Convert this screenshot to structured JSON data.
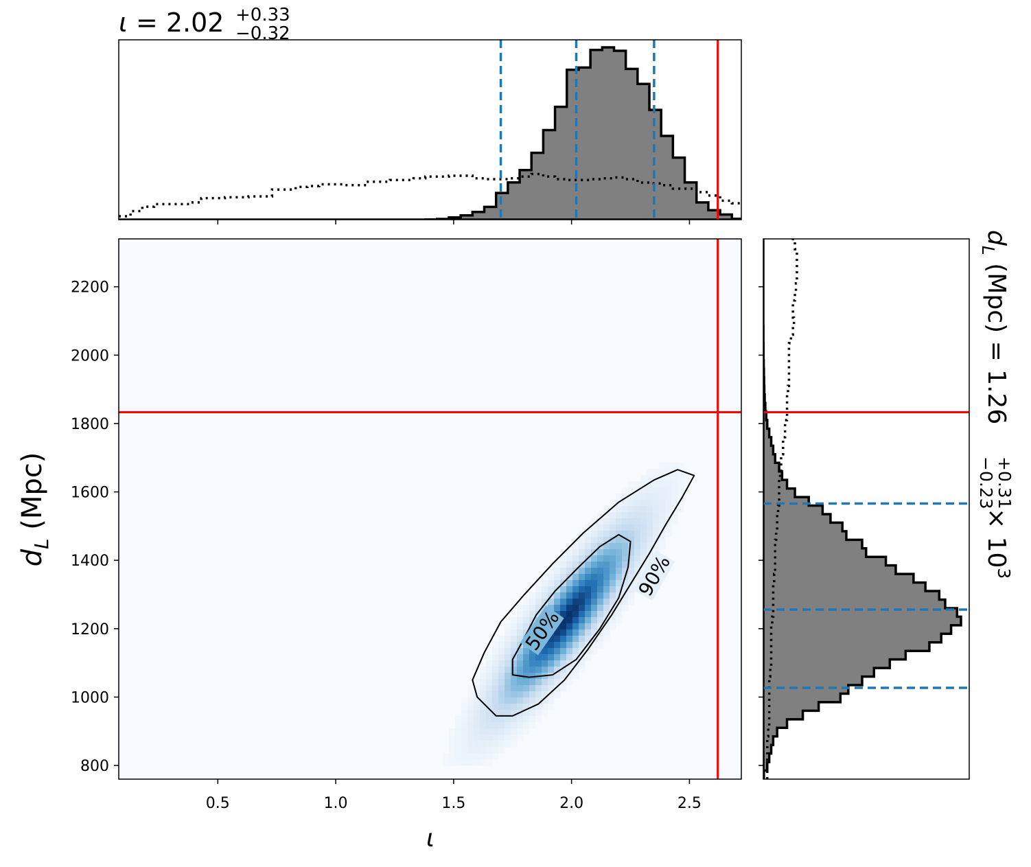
{
  "chart_data": {
    "type": "corner",
    "panels": {
      "top_histogram": {
        "type": "histogram",
        "title": {
          "symbol": "ι",
          "eq": " = 2.02",
          "sup": "+0.33",
          "sub": "−0.32"
        },
        "xlim": [
          0.08,
          2.72
        ],
        "bins_start": 0.08,
        "bin_width": 0.05,
        "posterior_density": [
          0,
          0,
          0,
          0,
          0,
          0,
          0,
          0,
          0,
          0,
          0,
          0,
          0,
          0,
          0,
          0,
          0,
          0,
          0,
          0,
          0,
          0,
          0,
          0,
          0,
          0,
          0.001,
          0.004,
          0.013,
          0.025,
          0.045,
          0.074,
          0.155,
          0.216,
          0.288,
          0.388,
          0.52,
          0.655,
          0.87,
          0.883,
          0.985,
          1.0,
          0.98,
          0.875,
          0.788,
          0.637,
          0.486,
          0.36,
          0.216,
          0.1,
          0.055,
          0.03,
          0.005
        ],
        "prior_density": [
          0.02,
          0.05,
          0.075,
          0.09,
          0.09,
          0.09,
          0.1,
          0.125,
          0.125,
          0.13,
          0.13,
          0.135,
          0.135,
          0.175,
          0.175,
          0.19,
          0.195,
          0.205,
          0.205,
          0.2,
          0.2,
          0.22,
          0.22,
          0.23,
          0.23,
          0.24,
          0.25,
          0.25,
          0.255,
          0.255,
          0.24,
          0.235,
          0.235,
          0.24,
          0.25,
          0.265,
          0.25,
          0.235,
          0.23,
          0.23,
          0.235,
          0.24,
          0.245,
          0.235,
          0.215,
          0.21,
          0.2,
          0.18,
          0.18,
          0.16,
          0.14,
          0.11,
          0.095
        ],
        "quantile_lines": [
          1.7,
          2.02,
          2.35
        ],
        "truth": 2.62
      },
      "joint": {
        "type": "heatmap",
        "xlim": [
          0.08,
          2.72
        ],
        "ylim": [
          760,
          2340
        ],
        "xlabel": "ι",
        "ylabel_main": "d",
        "ylabel_sub": "L",
        "ylabel_rest": " (Mpc)",
        "xticks": [
          0.5,
          1.0,
          1.5,
          2.0,
          2.5
        ],
        "xtick_labels": [
          "0.5",
          "1.0",
          "1.5",
          "2.0",
          "2.5"
        ],
        "yticks": [
          800,
          1000,
          1200,
          1400,
          1600,
          1800,
          2000,
          2200
        ],
        "ytick_labels": [
          "800",
          "1000",
          "1200",
          "1400",
          "1600",
          "1800",
          "2000",
          "2200"
        ],
        "density_center": {
          "x": 1.98,
          "y": 1230
        },
        "contours": [
          {
            "level": "50%",
            "points": [
              [
                1.79,
                1160
              ],
              [
                1.85,
                1240
              ],
              [
                1.93,
                1310
              ],
              [
                2.03,
                1380
              ],
              [
                2.12,
                1440
              ],
              [
                2.2,
                1475
              ],
              [
                2.25,
                1455
              ],
              [
                2.24,
                1380
              ],
              [
                2.2,
                1290
              ],
              [
                2.12,
                1200
              ],
              [
                2.02,
                1110
              ],
              [
                1.92,
                1065
              ],
              [
                1.82,
                1058
              ],
              [
                1.75,
                1065
              ],
              [
                1.75,
                1110
              ]
            ]
          },
          {
            "level": "90%",
            "points": [
              [
                1.63,
                1130
              ],
              [
                1.7,
                1220
              ],
              [
                1.8,
                1300
              ],
              [
                1.92,
                1390
              ],
              [
                2.05,
                1480
              ],
              [
                2.2,
                1570
              ],
              [
                2.35,
                1635
              ],
              [
                2.45,
                1665
              ],
              [
                2.52,
                1648
              ],
              [
                2.47,
                1585
              ],
              [
                2.4,
                1505
              ],
              [
                2.33,
                1420
              ],
              [
                2.25,
                1330
              ],
              [
                2.17,
                1240
              ],
              [
                2.07,
                1140
              ],
              [
                1.97,
                1050
              ],
              [
                1.86,
                980
              ],
              [
                1.75,
                945
              ],
              [
                1.68,
                945
              ],
              [
                1.6,
                1000
              ],
              [
                1.58,
                1050
              ]
            ]
          }
        ],
        "contour_labels": [
          {
            "text": "50%",
            "x": 1.875,
            "y": 1195,
            "angle": -55
          },
          {
            "text": "90%",
            "x": 2.35,
            "y": 1355,
            "angle": -60
          }
        ],
        "truth": {
          "x": 2.62,
          "y": 1833
        }
      },
      "right_histogram": {
        "type": "histogram",
        "orientation": "horizontal",
        "title": {
          "main": "d",
          "sub": "L",
          "rest": " (Mpc) = 1.26",
          "sup": "+0.31",
          "sub2": "−0.23",
          "tail": " × 10",
          "exp": "3"
        },
        "ylim": [
          760,
          2340
        ],
        "bins_start": 760,
        "bin_width": 25,
        "posterior_density": [
          0.003,
          0.02,
          0.03,
          0.04,
          0.05,
          0.07,
          0.12,
          0.2,
          0.28,
          0.39,
          0.43,
          0.5,
          0.56,
          0.64,
          0.72,
          0.84,
          0.9,
          0.95,
          1.0,
          0.98,
          0.92,
          0.89,
          0.82,
          0.76,
          0.67,
          0.62,
          0.52,
          0.5,
          0.42,
          0.4,
          0.34,
          0.3,
          0.23,
          0.16,
          0.12,
          0.095,
          0.08,
          0.06,
          0.05,
          0.04,
          0.03,
          0.02,
          0.015,
          0.01,
          0.007,
          0.005,
          0.004,
          0.003,
          0.002,
          0.001,
          0.001,
          0.0005,
          0.0005,
          0,
          0,
          0,
          0,
          0,
          0,
          0,
          0,
          0,
          0,
          0
        ],
        "prior_density": [
          0.02,
          0.02,
          0.02,
          0.02,
          0.02,
          0.025,
          0.03,
          0.03,
          0.03,
          0.03,
          0.03,
          0.03,
          0.035,
          0.04,
          0.04,
          0.04,
          0.04,
          0.04,
          0.045,
          0.05,
          0.05,
          0.05,
          0.05,
          0.055,
          0.06,
          0.06,
          0.06,
          0.06,
          0.065,
          0.07,
          0.07,
          0.075,
          0.08,
          0.08,
          0.08,
          0.085,
          0.09,
          0.09,
          0.1,
          0.1,
          0.11,
          0.11,
          0.12,
          0.12,
          0.12,
          0.125,
          0.13,
          0.13,
          0.13,
          0.13,
          0.13,
          0.14,
          0.15,
          0.155,
          0.15,
          0.15,
          0.16,
          0.165,
          0.17,
          0.17,
          0.17,
          0.17,
          0.16,
          0.15
        ],
        "quantile_lines": [
          1027,
          1256,
          1566
        ],
        "truth": 1833
      }
    }
  },
  "colors": {
    "truth": "#ff0000",
    "quantile": "#1f77b4",
    "hist_fill": "#808080",
    "hist_edge": "#000000",
    "heatmap_low": "#f7fbff",
    "heatmap_high": "#08306b"
  }
}
